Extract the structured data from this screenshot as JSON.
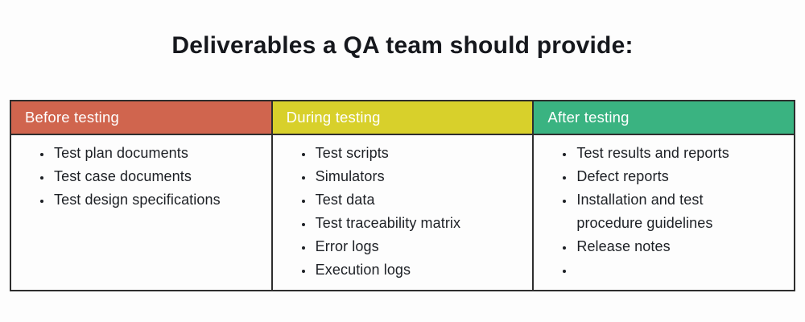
{
  "title": "Deliverables a QA team should provide:",
  "colors": {
    "background": "#fdfdfd",
    "border": "#2e2e2e",
    "title_text": "#16181d",
    "body_text": "#1d2025",
    "header_text": "#ffffff",
    "before_header": "#d0654e",
    "during_header": "#d8d02b",
    "after_header": "#3ab381"
  },
  "table": {
    "columns": [
      {
        "header": "Before testing",
        "header_color": "#d0654e",
        "items": [
          "Test plan documents",
          "Test case documents",
          "Test design specifications"
        ]
      },
      {
        "header": "During testing",
        "header_color": "#d8d02b",
        "items": [
          "Test scripts",
          "Simulators",
          "Test data",
          "Test traceability matrix",
          "Error logs",
          "Execution logs"
        ]
      },
      {
        "header": "After testing",
        "header_color": "#3ab381",
        "items": [
          "Test results and reports",
          "Defect reports",
          "Installation and test procedure guidelines",
          "Release notes",
          ""
        ]
      }
    ]
  }
}
